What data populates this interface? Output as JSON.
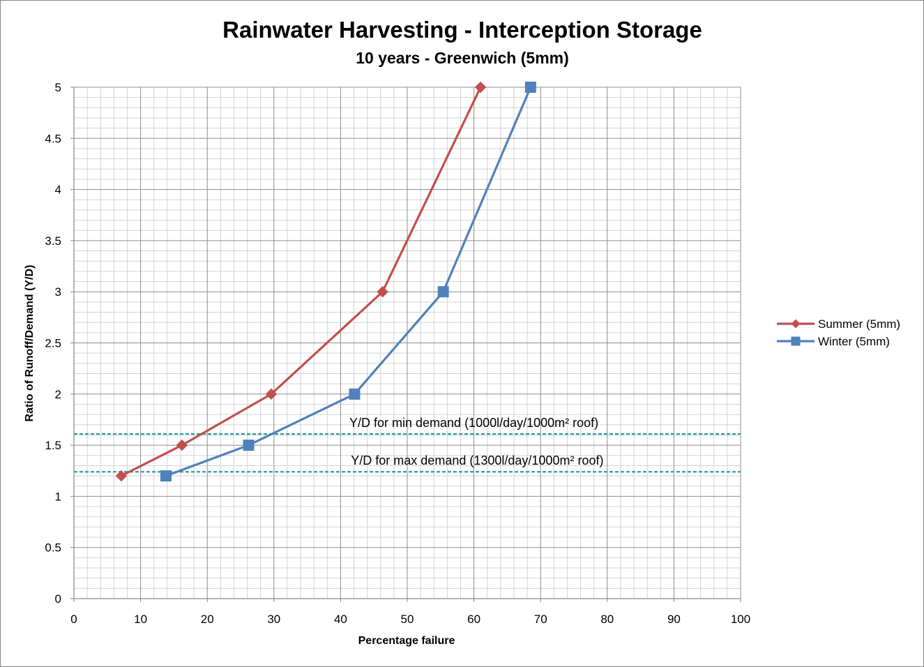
{
  "chart_data": {
    "type": "line",
    "title": "Rainwater Harvesting - Interception Storage",
    "subtitle": "10 years - Greenwich (5mm)",
    "xlabel": "Percentage failure",
    "ylabel": "Ratio of Runoff/Demand (Y/D)",
    "xlim": [
      0,
      100
    ],
    "ylim": [
      0,
      5
    ],
    "x_ticks": [
      "0",
      "10",
      "20",
      "30",
      "40",
      "50",
      "60",
      "70",
      "80",
      "90",
      "100"
    ],
    "y_ticks": [
      "0",
      "0.5",
      "1",
      "1.5",
      "2",
      "2.5",
      "3",
      "3.5",
      "4",
      "4.5",
      "5"
    ],
    "grid": true,
    "legend_position": "right",
    "series": [
      {
        "name": "Summer (5mm)",
        "color": "#c0504d",
        "marker": "diamond",
        "points": [
          {
            "x": 7.1,
            "y": 1.2
          },
          {
            "x": 16.2,
            "y": 1.5
          },
          {
            "x": 29.6,
            "y": 2.0
          },
          {
            "x": 46.3,
            "y": 3.0
          },
          {
            "x": 61.0,
            "y": 5.0
          }
        ]
      },
      {
        "name": "Winter (5mm)",
        "color": "#4f81bd",
        "marker": "square",
        "points": [
          {
            "x": 13.8,
            "y": 1.2
          },
          {
            "x": 26.2,
            "y": 1.5
          },
          {
            "x": 42.1,
            "y": 2.0
          },
          {
            "x": 55.4,
            "y": 3.0
          },
          {
            "x": 68.5,
            "y": 5.0
          }
        ]
      }
    ],
    "reference_lines": [
      {
        "y": 1.61,
        "color": "#2e9ba5",
        "label": "Y/D for min demand (1000l/day/1000m² roof)",
        "label_x": 60
      },
      {
        "y": 1.24,
        "color": "#2e9ba5",
        "label": "Y/D for max demand (1300l/day/1000m² roof)",
        "label_x": 60.5
      }
    ]
  }
}
